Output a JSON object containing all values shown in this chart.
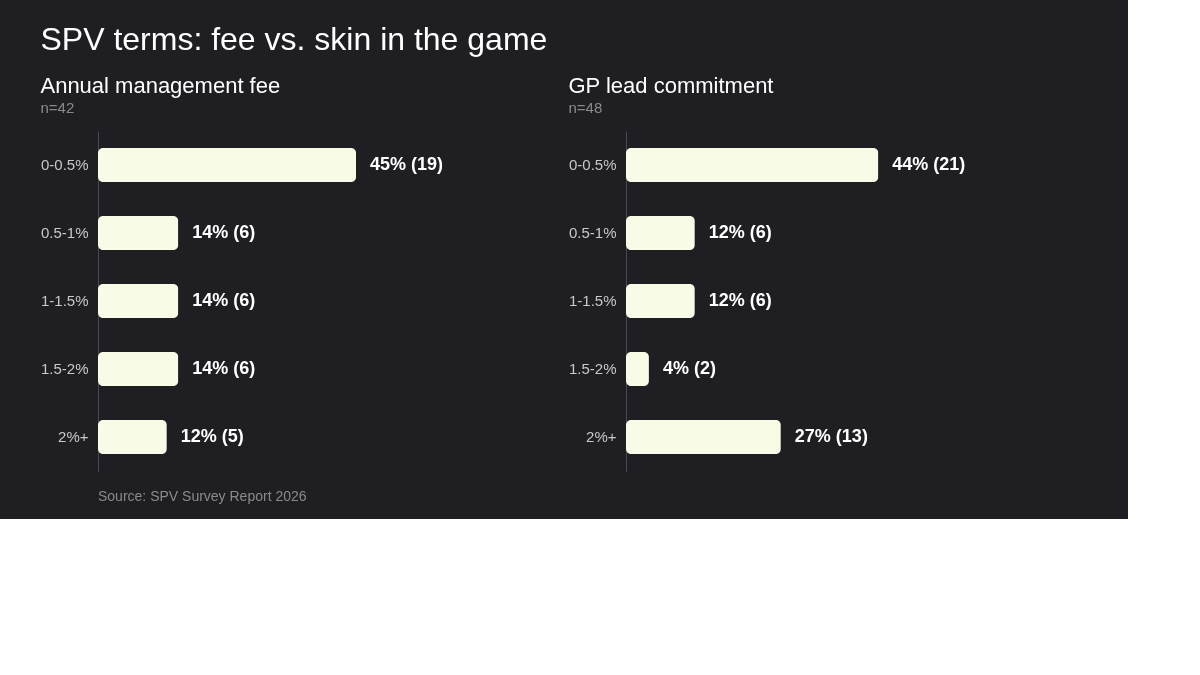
{
  "chart_data": [
    {
      "type": "other",
      "title": "SPV terms: fee vs. skin in the game",
      "annotations": [
        "Source: SPV Survey Report 2026"
      ]
    },
    {
      "type": "bar",
      "orientation": "horizontal",
      "title": "Annual management fee",
      "subtitle": "n=42",
      "categories": [
        "0-0.5%",
        "0.5-1%",
        "1-1.5%",
        "1.5-2%",
        "2%+"
      ],
      "values": [
        45,
        14,
        14,
        14,
        12
      ],
      "value_labels": [
        "45% (19)",
        "14% (6)",
        "14% (6)",
        "14% (6)",
        "12% (5)"
      ],
      "color": "#f8fbe6"
    },
    {
      "type": "bar",
      "orientation": "horizontal",
      "title": "GP lead commitment",
      "subtitle": "n=48",
      "categories": [
        "0-0.5%",
        "0.5-1%",
        "1-1.5%",
        "1.5-2%",
        "2%+"
      ],
      "values": [
        44,
        12,
        12,
        4,
        27
      ],
      "value_labels": [
        "44% (21)",
        "12% (6)",
        "12% (6)",
        "4% (2)",
        "27% (13)"
      ],
      "color": "#f8fbe6"
    }
  ]
}
